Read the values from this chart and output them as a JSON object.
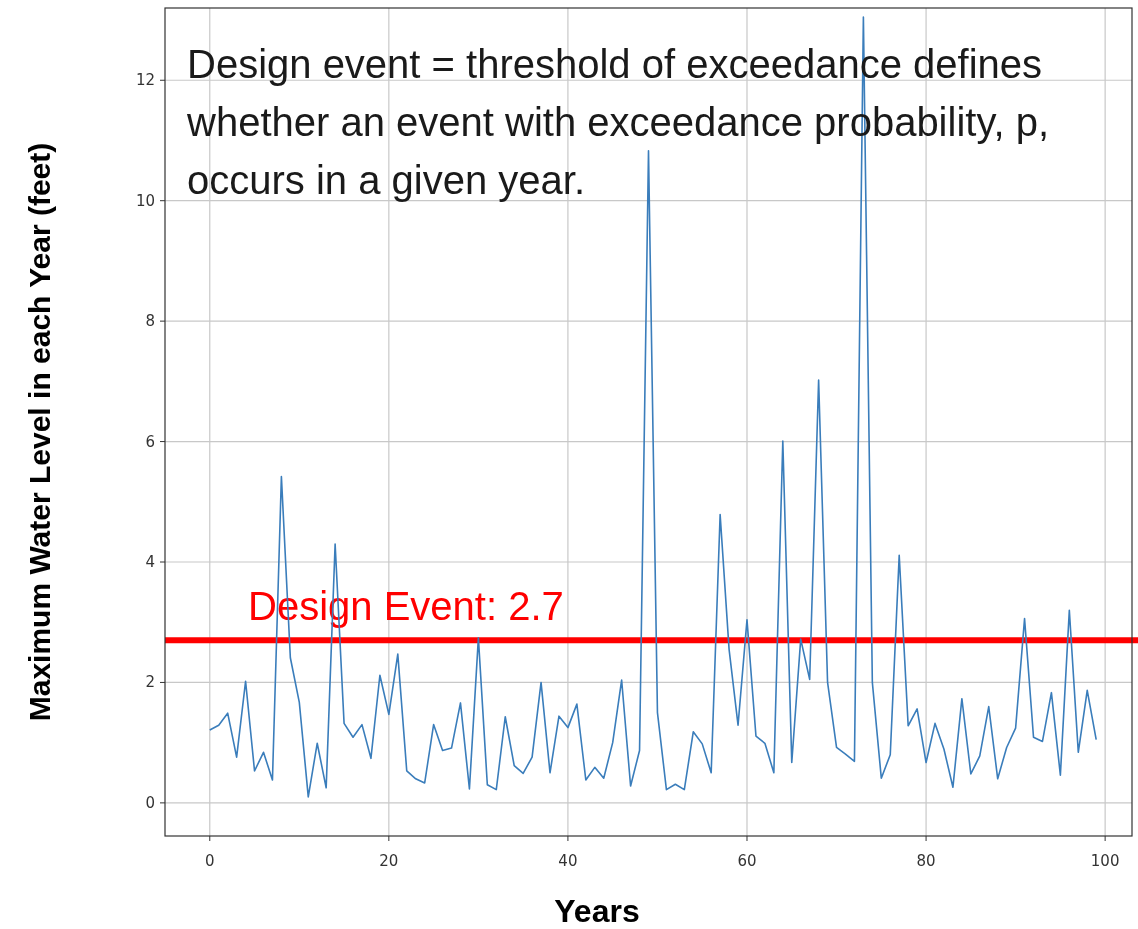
{
  "chart_data": {
    "type": "line",
    "xlabel": "Years",
    "ylabel": "Maximum Water Level in each Year (feet)",
    "x": [
      0,
      1,
      2,
      3,
      4,
      5,
      6,
      7,
      8,
      9,
      10,
      11,
      12,
      13,
      14,
      15,
      16,
      17,
      18,
      19,
      20,
      21,
      22,
      23,
      24,
      25,
      26,
      27,
      28,
      29,
      30,
      31,
      32,
      33,
      34,
      35,
      36,
      37,
      38,
      39,
      40,
      41,
      42,
      43,
      44,
      45,
      46,
      47,
      48,
      49,
      50,
      51,
      52,
      53,
      54,
      55,
      56,
      57,
      58,
      59,
      60,
      61,
      62,
      63,
      64,
      65,
      66,
      67,
      68,
      69,
      70,
      71,
      72,
      73,
      74,
      75,
      76,
      77,
      78,
      79,
      80,
      81,
      82,
      83,
      84,
      85,
      86,
      87,
      88,
      89,
      90,
      91,
      92,
      93,
      94,
      95,
      96,
      97,
      98,
      99
    ],
    "series": [
      {
        "color": "#3a7dbb",
        "values": [
          1.21,
          1.29,
          1.49,
          0.76,
          2.02,
          0.53,
          0.84,
          0.38,
          5.42,
          2.41,
          1.67,
          0.1,
          0.99,
          0.25,
          4.3,
          1.32,
          1.09,
          1.3,
          0.74,
          2.12,
          1.47,
          2.47,
          0.53,
          0.4,
          0.33,
          1.3,
          0.87,
          0.91,
          1.66,
          0.23,
          2.74,
          0.3,
          0.22,
          1.43,
          0.62,
          0.49,
          0.76,
          2.0,
          0.5,
          1.44,
          1.25,
          1.64,
          0.38,
          0.59,
          0.41,
          1.0,
          2.04,
          0.28,
          0.87,
          10.83,
          1.5,
          0.22,
          0.31,
          0.22,
          1.18,
          0.98,
          0.5,
          4.79,
          2.55,
          1.29,
          3.04,
          1.11,
          0.99,
          0.5,
          6.01,
          0.67,
          2.72,
          2.05,
          7.02,
          2.0,
          0.92,
          0.81,
          0.69,
          13.05,
          2.0,
          0.41,
          0.8,
          4.11,
          1.28,
          1.56,
          0.67,
          1.32,
          0.89,
          0.26,
          1.73,
          0.48,
          0.78,
          1.6,
          0.4,
          0.92,
          1.24,
          3.06,
          1.09,
          1.02,
          1.83,
          0.46,
          3.2,
          0.84,
          1.87,
          1.05
        ]
      }
    ],
    "xlim": [
      -5,
      103
    ],
    "xticks": [
      0,
      20,
      40,
      60,
      80,
      100
    ],
    "ylim": [
      -0.55,
      13.2
    ],
    "yticks": [
      0,
      2,
      4,
      6,
      8,
      10,
      12
    ],
    "grid": true,
    "ref_lines": [
      {
        "axis": "y",
        "value": 2.7,
        "label": "Design Event: 2.7",
        "color": "#ff0000"
      }
    ],
    "annotations": [
      "Design event = threshold of exceedance defines whether an event with exceedance probability, p, occurs in a given year."
    ]
  }
}
